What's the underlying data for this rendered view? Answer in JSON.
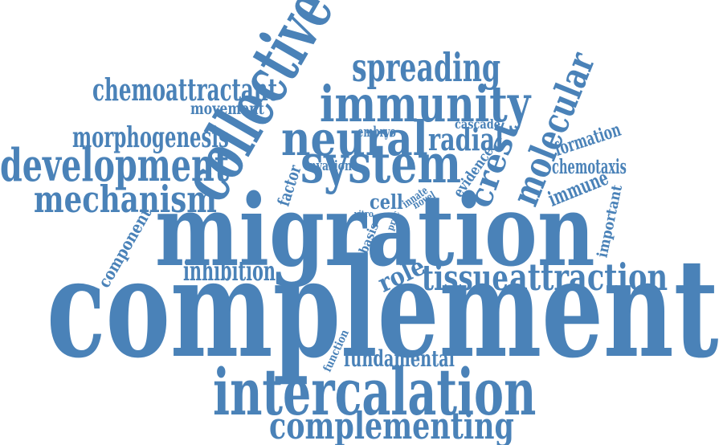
{
  "colors": {
    "word": "#4a82b8",
    "background": "#ffffff"
  },
  "words": [
    {
      "text": "complement"
    },
    {
      "text": "migration"
    },
    {
      "text": "intercalation"
    },
    {
      "text": "collective"
    },
    {
      "text": "immunity"
    },
    {
      "text": "system"
    },
    {
      "text": "neural"
    },
    {
      "text": "spreading"
    },
    {
      "text": "development"
    },
    {
      "text": "molecular"
    },
    {
      "text": "mechanism"
    },
    {
      "text": "complementing"
    },
    {
      "text": "attraction"
    },
    {
      "text": "chemoattractant"
    },
    {
      "text": "tissue"
    },
    {
      "text": "morphogenesis"
    },
    {
      "text": "crest"
    },
    {
      "text": "radial"
    },
    {
      "text": "inhibition"
    },
    {
      "text": "fundamental"
    },
    {
      "text": "role"
    },
    {
      "text": "chemotaxis"
    },
    {
      "text": "formation"
    },
    {
      "text": "immune"
    },
    {
      "text": "cell"
    },
    {
      "text": "movement"
    },
    {
      "text": "component"
    },
    {
      "text": "important"
    },
    {
      "text": "factor"
    },
    {
      "text": "evidence"
    },
    {
      "text": "embryo"
    },
    {
      "text": "cascade"
    },
    {
      "text": "invasion"
    },
    {
      "text": "function"
    },
    {
      "text": "basis"
    },
    {
      "text": "innate"
    },
    {
      "text": "novel"
    },
    {
      "text": "proc"
    },
    {
      "text": "vitro"
    }
  ]
}
